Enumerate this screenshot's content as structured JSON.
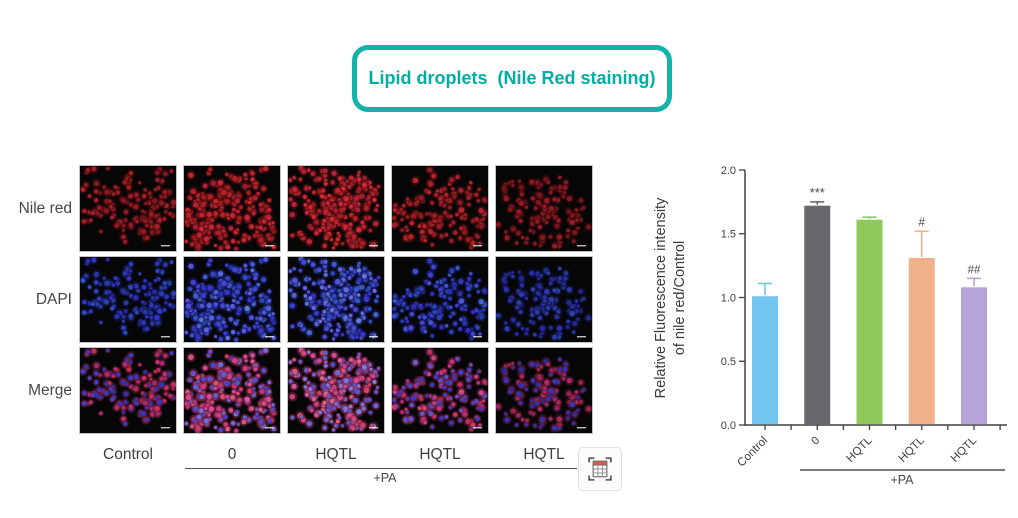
{
  "title": {
    "label": "Lipid droplets  (Nile Red staining)",
    "accent_color": "#11b3ab"
  },
  "microscopy": {
    "rows": [
      {
        "label": "Nile red",
        "palette": "red"
      },
      {
        "label": "DAPI",
        "palette": "blue"
      },
      {
        "label": "Merge",
        "palette": "merge"
      }
    ],
    "columns": [
      {
        "label": "Control",
        "relative_density": 175,
        "relative_brightness": 0.85
      },
      {
        "label": "0",
        "relative_density": 265,
        "relative_brightness": 1.05
      },
      {
        "label": "HQTL",
        "relative_density": 255,
        "relative_brightness": 1.1
      },
      {
        "label": "HQTL",
        "relative_density": 205,
        "relative_brightness": 0.95
      },
      {
        "label": "HQTL",
        "relative_density": 150,
        "relative_brightness": 0.75
      }
    ],
    "group_label": "+PA"
  },
  "toolbar": {
    "capture_table_icon": "table-capture-icon"
  },
  "chart_data": {
    "type": "bar",
    "categories": [
      "Control",
      "0",
      "HQTL",
      "HQTL",
      "HQTL"
    ],
    "values": [
      1.01,
      1.72,
      1.61,
      1.31,
      1.08
    ],
    "errors": [
      0.1,
      0.03,
      0.02,
      0.21,
      0.07
    ],
    "significance": [
      "",
      "***",
      "",
      "#",
      "##"
    ],
    "bar_colors": [
      "#72c5ee",
      "#66686b",
      "#8fc95a",
      "#f2b08a",
      "#b6a3d8"
    ],
    "title": "",
    "xlabel": "",
    "ylabel_line1": "Relative Fluorescence intensity",
    "ylabel_line2": "of nile red/Control",
    "ylim": [
      0.0,
      2.0
    ],
    "yticks": [
      "0.0",
      "0.5",
      "1.0",
      "1.5",
      "2.0"
    ],
    "grid": false,
    "legend": "none",
    "group_label": "+PA",
    "group_span_categories": [
      "0",
      "HQTL",
      "HQTL",
      "HQTL"
    ],
    "axis_color": "#414141",
    "text_color": "#3f3f3f"
  }
}
